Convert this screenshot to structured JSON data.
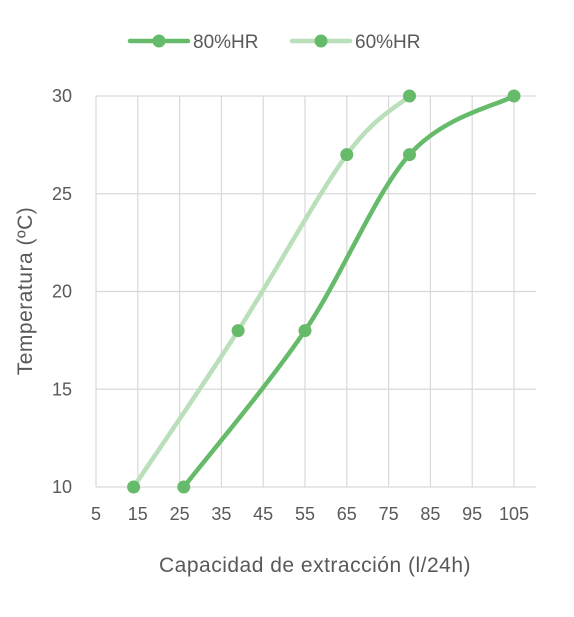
{
  "chart_data": {
    "type": "line",
    "xlabel": "Capacidad de extracción (l/24h)",
    "ylabel": "Temperatura (ºC)",
    "xlim": [
      5,
      105
    ],
    "ylim": [
      10,
      30
    ],
    "x_ticks": [
      5,
      15,
      25,
      35,
      45,
      55,
      65,
      75,
      85,
      95,
      105
    ],
    "y_ticks": [
      10,
      15,
      20,
      25,
      30
    ],
    "grid": true,
    "legend_position": "top",
    "smooth": true,
    "series": [
      {
        "name": "80%HR",
        "color": "#66bb6a",
        "points": [
          {
            "x": 26,
            "y": 10
          },
          {
            "x": 55,
            "y": 18
          },
          {
            "x": 80,
            "y": 27
          },
          {
            "x": 105,
            "y": 30
          }
        ]
      },
      {
        "name": "60%HR",
        "color": "#b9dfbb",
        "marker_color": "#66bb6a",
        "points": [
          {
            "x": 14,
            "y": 10
          },
          {
            "x": 39,
            "y": 18
          },
          {
            "x": 65,
            "y": 27
          },
          {
            "x": 80,
            "y": 30
          }
        ]
      }
    ]
  }
}
